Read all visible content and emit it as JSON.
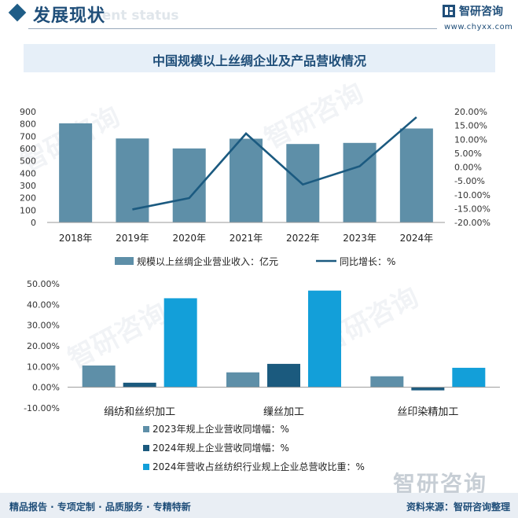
{
  "header": {
    "title": "发展现状",
    "title_en": "ment status",
    "brand": "智研咨询",
    "url": "www.chyxx.com"
  },
  "banner": {
    "title": "中国规模以上丝绸企业及产品营收情况"
  },
  "watermark": "智研咨询",
  "chart_data": [
    {
      "type": "bar",
      "title": "中国规模以上丝绸企业及产品营收情况",
      "categories": [
        "2018年",
        "2019年",
        "2020年",
        "2021年",
        "2022年",
        "2023年",
        "2024年"
      ],
      "series": [
        {
          "name": "规模以上丝绸企业营业收入：亿元",
          "type": "bar",
          "axis": "left",
          "color": "#5e8fa8",
          "values": [
            805,
            682,
            601,
            680,
            637,
            646,
            763
          ]
        },
        {
          "name": "同比增长：%",
          "type": "line",
          "axis": "right",
          "color": "#1b5a80",
          "values": [
            null,
            -15.3,
            -11.2,
            12.1,
            -6.3,
            0.3,
            18.0
          ]
        }
      ],
      "y_left": {
        "min": 0,
        "max": 900,
        "step": 100,
        "ticks": [
          "900",
          "800",
          "700",
          "600",
          "500",
          "400",
          "300",
          "200",
          "100",
          "0"
        ]
      },
      "y_right": {
        "min": -20,
        "max": 20,
        "step": 5,
        "ticks": [
          "20.00%",
          "15.00%",
          "10.00%",
          "5.00%",
          "0.00%",
          "-5.00%",
          "-10.00%",
          "-15.00%",
          "-20.00%"
        ]
      },
      "legend_placement": "bottom",
      "grid": false
    },
    {
      "type": "bar",
      "categories": [
        "绢纺和丝织加工",
        "缫丝加工",
        "丝印染精加工"
      ],
      "series": [
        {
          "name": "2023年规上企业营收同增幅：%",
          "color": "#5e8fa8",
          "values": [
            10.5,
            7.2,
            5.3
          ]
        },
        {
          "name": "2024年规上企业营收同增幅：%",
          "color": "#1b5a7e",
          "values": [
            2.2,
            11.3,
            -1.5
          ]
        },
        {
          "name": "2024年营收占丝纺织行业规上企业总营收比重：%",
          "color": "#139fd9",
          "values": [
            43.0,
            46.7,
            9.4
          ]
        }
      ],
      "y": {
        "min": -10,
        "max": 50,
        "step": 10,
        "ticks": [
          "50.00%",
          "40.00%",
          "30.00%",
          "20.00%",
          "10.00%",
          "0.00%",
          "-10.00%"
        ]
      },
      "legend_placement": "bottom",
      "grid": false
    }
  ],
  "footer": {
    "left": "精品报告 · 专项定制 · 品质服务 · 专精特新",
    "right": "资料来源：智研咨询整理"
  }
}
